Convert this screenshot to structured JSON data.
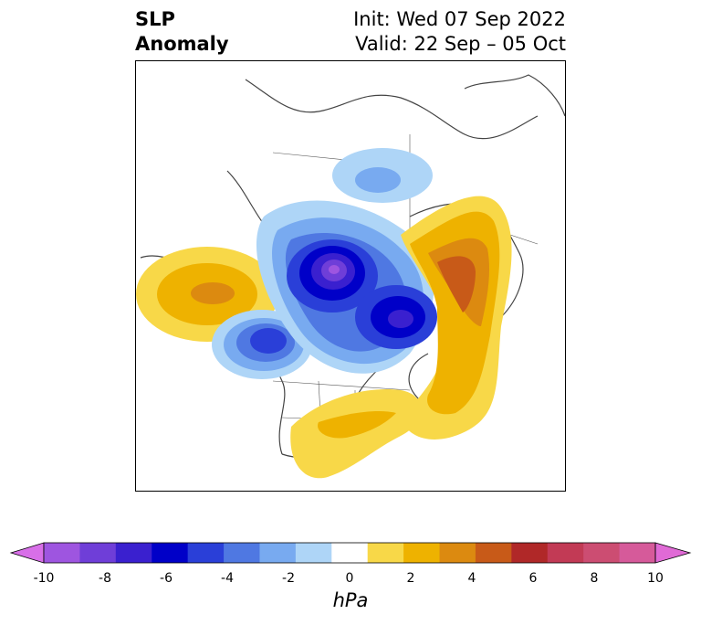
{
  "title": {
    "variable_line1": "SLP",
    "variable_line2": "Anomaly",
    "init": "Init: Wed 07 Sep 2022",
    "valid": "Valid: 22 Sep – 05 Oct"
  },
  "map": {
    "projection": "north polar stereographic",
    "region": "North America / North Pacific / North Atlantic",
    "anomaly_centers": [
      {
        "name": "arctic-low",
        "sign": "negative",
        "approx_hpa": -10
      },
      {
        "name": "hudson-bay-low",
        "sign": "negative",
        "approx_hpa": -6
      },
      {
        "name": "gulf-of-alaska-low",
        "sign": "negative",
        "approx_hpa": -6
      },
      {
        "name": "north-pacific-high",
        "sign": "positive",
        "approx_hpa": 4
      },
      {
        "name": "scandinavia-europe-high",
        "sign": "positive",
        "approx_hpa": 6
      },
      {
        "name": "north-atlantic-high",
        "sign": "positive",
        "approx_hpa": 2
      },
      {
        "name": "southern-us-high",
        "sign": "positive",
        "approx_hpa": 2
      }
    ]
  },
  "colorbar": {
    "label": "hPa",
    "ticks": [
      "-10",
      "-8",
      "-6",
      "-4",
      "-2",
      "0",
      "2",
      "4",
      "6",
      "8",
      "10"
    ],
    "colors": [
      "#d86fe8",
      "#9e55e0",
      "#6f3ed8",
      "#3a20cf",
      "#0000c8",
      "#2a3fd8",
      "#4f78e2",
      "#78aaf0",
      "#aed5f7",
      "#ffffff",
      "#f8d848",
      "#eeb200",
      "#dc8a10",
      "#c85a18",
      "#b02828",
      "#c23a55",
      "#cc4d72",
      "#d65a9a",
      "#e06ad6"
    ],
    "extend": "both"
  }
}
